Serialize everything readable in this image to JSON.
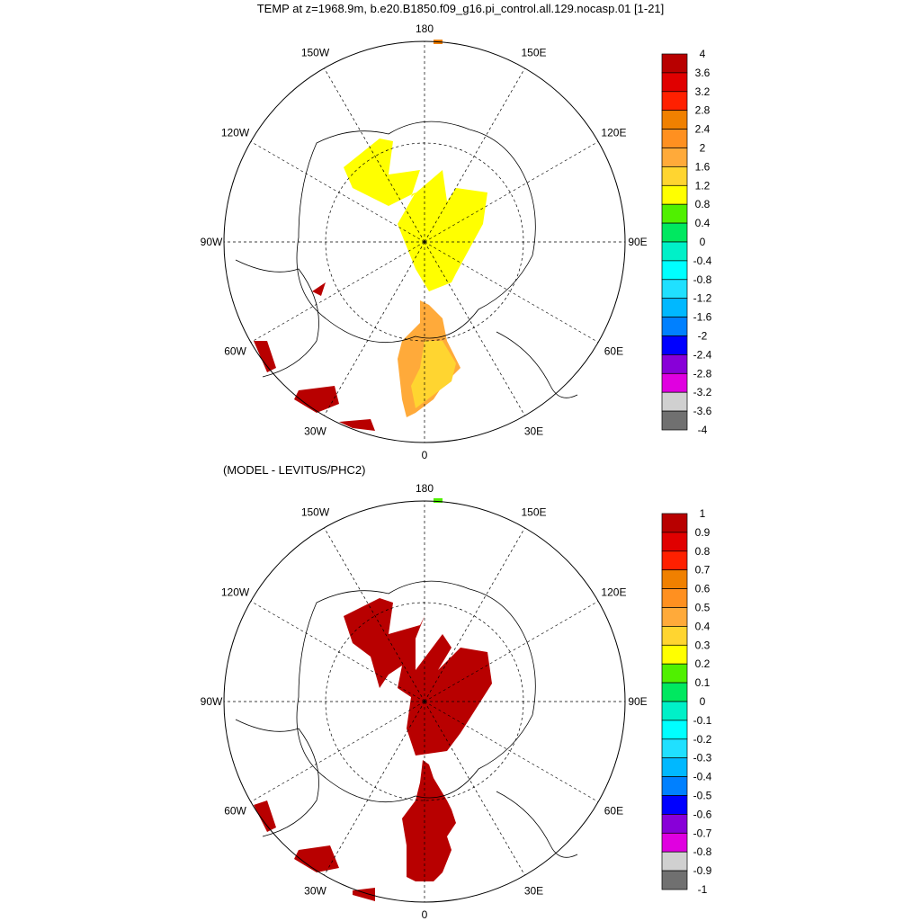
{
  "panels": [
    {
      "title": "TEMP at z=1968.9m, b.e20.B1850.f09_g16.pi_control.all.129.nocasp.01 [1-21]",
      "colorbar": {
        "labels": [
          "4",
          "3.6",
          "3.2",
          "2.8",
          "2.4",
          "2",
          "1.6",
          "1.2",
          "0.8",
          "0.4",
          "0",
          "-0.4",
          "-0.8",
          "-1.2",
          "-1.6",
          "-2",
          "-2.4",
          "-2.8",
          "-3.2",
          "-3.6",
          "-4"
        ]
      }
    },
    {
      "title": "(MODEL - LEVITUS/PHC2)",
      "colorbar": {
        "labels": [
          "1",
          "0.9",
          "0.8",
          "0.7",
          "0.6",
          "0.5",
          "0.4",
          "0.3",
          "0.2",
          "0.1",
          "0",
          "-0.1",
          "-0.2",
          "-0.3",
          "-0.4",
          "-0.5",
          "-0.6",
          "-0.7",
          "-0.8",
          "-0.9",
          "-1"
        ]
      }
    }
  ],
  "colors": [
    "#b80000",
    "#e00000",
    "#ff2000",
    "#f08000",
    "#ff9020",
    "#ffaa3a",
    "#ffd530",
    "#ffff00",
    "#50f000",
    "#00e860",
    "#00f0c8",
    "#00ffff",
    "#20e0ff",
    "#00b8ff",
    "#0080ff",
    "#0000ff",
    "#8800d8",
    "#e000e0",
    "#d0d0d0",
    "#707070"
  ],
  "longitude_labels": [
    "180",
    "150E",
    "120E",
    "90E",
    "60E",
    "30E",
    "0",
    "30W",
    "60W",
    "90W",
    "120W",
    "150W"
  ],
  "projection": "north polar stereographic"
}
